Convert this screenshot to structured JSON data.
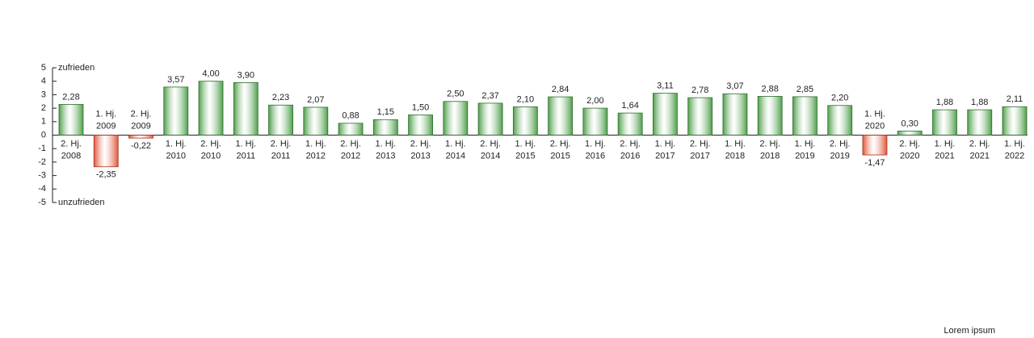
{
  "chart_data": {
    "type": "bar",
    "categories": [
      [
        "2. Hj.",
        "2008"
      ],
      [
        "1. Hj.",
        "2009"
      ],
      [
        "2. Hj.",
        "2009"
      ],
      [
        "1. Hj.",
        "2010"
      ],
      [
        "2. Hj.",
        "2010"
      ],
      [
        "1. Hj.",
        "2011"
      ],
      [
        "2. Hj.",
        "2011"
      ],
      [
        "1. Hj.",
        "2012"
      ],
      [
        "2. Hj.",
        "2012"
      ],
      [
        "1. Hj.",
        "2013"
      ],
      [
        "2. Hj.",
        "2013"
      ],
      [
        "1. Hj.",
        "2014"
      ],
      [
        "2. Hj.",
        "2014"
      ],
      [
        "1. Hj.",
        "2015"
      ],
      [
        "2. Hj.",
        "2015"
      ],
      [
        "1. Hj.",
        "2016"
      ],
      [
        "2. Hj.",
        "2016"
      ],
      [
        "1. Hj.",
        "2017"
      ],
      [
        "2. Hj.",
        "2017"
      ],
      [
        "1. Hj.",
        "2018"
      ],
      [
        "2. Hj.",
        "2018"
      ],
      [
        "1. Hj.",
        "2019"
      ],
      [
        "2. Hj.",
        "2019"
      ],
      [
        "1. Hj.",
        "2020"
      ],
      [
        "2. Hj.",
        "2020"
      ],
      [
        "1. Hj.",
        "2021"
      ],
      [
        "2. Hj.",
        "2021"
      ],
      [
        "1. Hj.",
        "2022"
      ]
    ],
    "values": [
      2.28,
      -2.35,
      -0.22,
      3.57,
      4.0,
      3.9,
      2.23,
      2.07,
      0.88,
      1.15,
      1.5,
      2.5,
      2.37,
      2.1,
      2.84,
      2.0,
      1.64,
      3.11,
      2.78,
      3.07,
      2.88,
      2.85,
      2.2,
      -1.47,
      0.3,
      1.88,
      1.88,
      2.11
    ],
    "value_labels": [
      "2,28",
      "-2,35",
      "-0,22",
      "3,57",
      "4,00",
      "3,90",
      "2,23",
      "2,07",
      "0,88",
      "1,15",
      "1,50",
      "2,50",
      "2,37",
      "2,10",
      "2,84",
      "2,00",
      "1,64",
      "3,11",
      "2,78",
      "3,07",
      "2,88",
      "2,85",
      "2,20",
      "-1,47",
      "0,30",
      "1,88",
      "1,88",
      "2,11"
    ],
    "color_positive": "#4e9e4a",
    "color_negative": "#e0553a",
    "ylim": [
      -5,
      5
    ],
    "yticks": [
      -5,
      -4,
      -3,
      -2,
      -1,
      0,
      1,
      2,
      3,
      4,
      5
    ],
    "y_top_label": "zufrieden",
    "y_bottom_label": "unzufrieden",
    "footer": "Lorem ipsum"
  }
}
